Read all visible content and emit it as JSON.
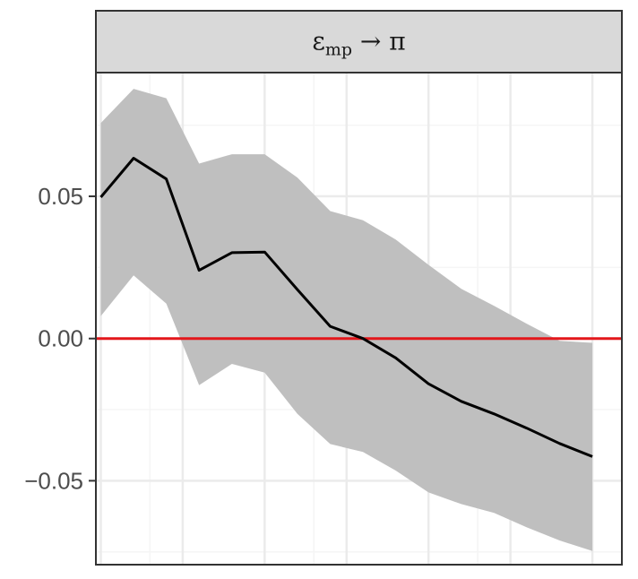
{
  "chart_data": {
    "type": "line",
    "facet_label": {
      "main": "ε",
      "subscript": "mp",
      "suffix": " → π"
    },
    "x": [
      0,
      1,
      2,
      3,
      4,
      5,
      6,
      7,
      8,
      9,
      10,
      11,
      12,
      13,
      14,
      15
    ],
    "xlim": [
      -0.15,
      15.9
    ],
    "ylim": [
      -0.0795,
      0.0935
    ],
    "yticks": [
      {
        "value": 0.05,
        "label": "0.05"
      },
      {
        "value": 0.0,
        "label": "0.00"
      },
      {
        "value": -0.05,
        "label": "−0.05"
      }
    ],
    "grid": true,
    "series": [
      {
        "values": [
          0.0497,
          0.0634,
          0.0561,
          0.024,
          0.0302,
          0.0304,
          0.0172,
          0.0043,
          0.0,
          -0.0068,
          -0.0159,
          -0.0221,
          -0.0265,
          -0.0315,
          -0.0369,
          -0.0415
        ],
        "lower": [
          0.0079,
          0.0222,
          0.0123,
          -0.0164,
          -0.0089,
          -0.012,
          -0.0265,
          -0.0371,
          -0.0399,
          -0.0464,
          -0.0541,
          -0.0582,
          -0.0613,
          -0.0664,
          -0.071,
          -0.0747
        ],
        "upper": [
          0.0758,
          0.0878,
          0.0845,
          0.0615,
          0.0648,
          0.0648,
          0.0566,
          0.0448,
          0.0416,
          0.0348,
          0.0259,
          0.0175,
          0.0115,
          0.0052,
          -0.0008,
          -0.0015
        ],
        "line_color": "#000000",
        "band_color": "#bfbfbf"
      }
    ],
    "reference_line": {
      "y": 0.0,
      "color": "#e3171b"
    },
    "colors": {
      "strip_fill": "#d9d9d9",
      "panel_border": "#333333",
      "grid_major": "#ebebeb",
      "grid_minor": "#f5f5f5",
      "tick_text": "#4d4d4d"
    }
  }
}
